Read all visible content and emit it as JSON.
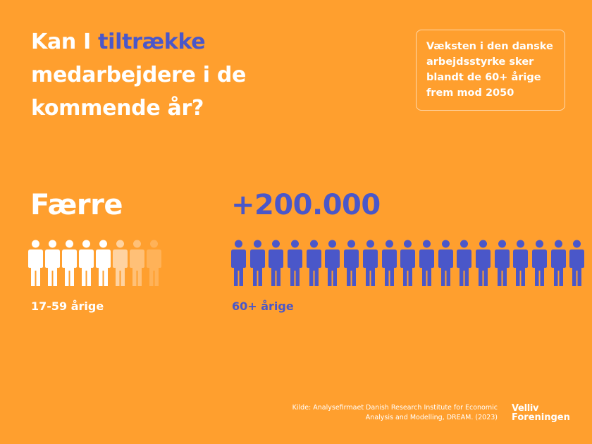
{
  "title": {
    "before": "Kan I ",
    "highlight": "tiltrække",
    "after_line1": "",
    "line2": "medarbejdere i de",
    "line3": "kommende år?"
  },
  "note": {
    "text": "Væksten i den danske arbejdsstyrke sker blandt de 60+ årige frem mod 2050"
  },
  "left_group": {
    "headline": "Færre",
    "label": "17-59 årige",
    "icon_count": 8,
    "faded_from_index": 5
  },
  "right_group": {
    "headline": "+200.000",
    "label": "60+ årige",
    "icon_count": 19
  },
  "source": {
    "line1": "Kilde: Analysefirmaet Danish Research Institute for Economic",
    "line2": "Analysis and Modelling, DREAM. (2023)"
  },
  "logo": {
    "line1": "Velliv",
    "line2": "Foreningen"
  },
  "colors": {
    "background": "#FF9F2E",
    "accent": "#4A57C9",
    "white": "#FFFFFF"
  }
}
